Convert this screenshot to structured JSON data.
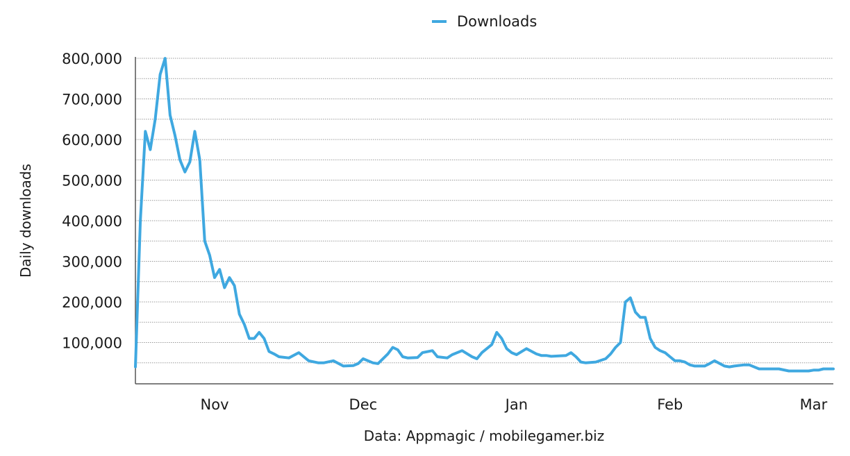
{
  "chart_data": {
    "type": "line",
    "legend": {
      "position": "top-center",
      "entries": [
        "Downloads"
      ]
    },
    "series": [
      {
        "name": "Downloads",
        "color": "#3fa8e0",
        "x": [
          "2023-10-16",
          "2023-10-17",
          "2023-10-18",
          "2023-10-19",
          "2023-10-20",
          "2023-10-21",
          "2023-10-22",
          "2023-10-23",
          "2023-10-24",
          "2023-10-25",
          "2023-10-26",
          "2023-10-27",
          "2023-10-28",
          "2023-10-29",
          "2023-10-30",
          "2023-10-31",
          "2023-11-01",
          "2023-11-02",
          "2023-11-03",
          "2023-11-04",
          "2023-11-05",
          "2023-11-06",
          "2023-11-07",
          "2023-11-08",
          "2023-11-09",
          "2023-11-10",
          "2023-11-11",
          "2023-11-12",
          "2023-11-13",
          "2023-11-14",
          "2023-11-16",
          "2023-11-18",
          "2023-11-20",
          "2023-11-22",
          "2023-11-23",
          "2023-11-25",
          "2023-11-27",
          "2023-11-29",
          "2023-11-30",
          "2023-12-01",
          "2023-12-03",
          "2023-12-04",
          "2023-12-06",
          "2023-12-07",
          "2023-12-08",
          "2023-12-09",
          "2023-12-10",
          "2023-12-12",
          "2023-12-13",
          "2023-12-15",
          "2023-12-16",
          "2023-12-18",
          "2023-12-19",
          "2023-12-21",
          "2023-12-23",
          "2023-12-24",
          "2023-12-25",
          "2023-12-27",
          "2023-12-28",
          "2023-12-29",
          "2023-12-30",
          "2023-12-31",
          "2024-01-01",
          "2024-01-03",
          "2024-01-05",
          "2024-01-06",
          "2024-01-07",
          "2024-01-08",
          "2024-01-11",
          "2024-01-12",
          "2024-01-13",
          "2024-01-14",
          "2024-01-15",
          "2024-01-17",
          "2024-01-19",
          "2024-01-20",
          "2024-01-21",
          "2024-01-22",
          "2024-01-23",
          "2024-01-24",
          "2024-01-25",
          "2024-01-26",
          "2024-01-27",
          "2024-01-28",
          "2024-01-29",
          "2024-01-30",
          "2024-01-31",
          "2024-02-01",
          "2024-02-02",
          "2024-02-03",
          "2024-02-04",
          "2024-02-05",
          "2024-02-06",
          "2024-02-08",
          "2024-02-09",
          "2024-02-10",
          "2024-02-12",
          "2024-02-13",
          "2024-02-14",
          "2024-02-16",
          "2024-02-17",
          "2024-02-19",
          "2024-02-20",
          "2024-02-21",
          "2024-02-23",
          "2024-02-25",
          "2024-02-26",
          "2024-02-27",
          "2024-02-29",
          "2024-03-01",
          "2024-03-02",
          "2024-03-03",
          "2024-03-04",
          "2024-03-05"
        ],
        "values": [
          40000,
          400000,
          620000,
          575000,
          650000,
          760000,
          800000,
          660000,
          610000,
          550000,
          520000,
          545000,
          620000,
          550000,
          350000,
          315000,
          260000,
          280000,
          235000,
          260000,
          240000,
          170000,
          145000,
          110000,
          110000,
          125000,
          110000,
          78000,
          72000,
          65000,
          62000,
          75000,
          55000,
          50000,
          50000,
          55000,
          42000,
          43000,
          48000,
          60000,
          50000,
          48000,
          72000,
          88000,
          82000,
          65000,
          62000,
          63000,
          75000,
          80000,
          65000,
          62000,
          70000,
          80000,
          65000,
          60000,
          75000,
          95000,
          125000,
          110000,
          85000,
          75000,
          70000,
          85000,
          72000,
          68000,
          68000,
          66000,
          68000,
          75000,
          65000,
          52000,
          50000,
          52000,
          60000,
          72000,
          88000,
          100000,
          200000,
          210000,
          175000,
          162000,
          162000,
          110000,
          88000,
          80000,
          75000,
          65000,
          55000,
          55000,
          52000,
          45000,
          42000,
          42000,
          48000,
          55000,
          42000,
          40000,
          42000,
          45000,
          45000,
          35000,
          35000,
          35000,
          35000,
          30000,
          30000,
          30000,
          30000,
          32000,
          32000,
          35000,
          35000,
          35000
        ]
      }
    ],
    "xlim": [
      "2023-10-16",
      "2024-03-05"
    ],
    "xticks": [
      {
        "label": "Nov",
        "date": "2023-11-01"
      },
      {
        "label": "Dec",
        "date": "2023-12-01"
      },
      {
        "label": "Jan",
        "date": "2024-01-01"
      },
      {
        "label": "Feb",
        "date": "2024-02-01"
      },
      {
        "label": "Mar",
        "date": "2024-03-01"
      }
    ],
    "ylim": [
      0,
      800000
    ],
    "yticks": [
      {
        "label": "100,000",
        "value": 100000
      },
      {
        "label": "200,000",
        "value": 200000
      },
      {
        "label": "300,000",
        "value": 300000
      },
      {
        "label": "400,000",
        "value": 400000
      },
      {
        "label": "500,000",
        "value": 500000
      },
      {
        "label": "600,000",
        "value": 600000
      },
      {
        "label": "700,000",
        "value": 700000
      },
      {
        "label": "800,000",
        "value": 800000
      }
    ],
    "ylabel": "Daily downloads",
    "xlabel": "Data: Appmagic / mobilegamer.biz",
    "grid": {
      "horizontal": true,
      "style": "dotted"
    }
  }
}
